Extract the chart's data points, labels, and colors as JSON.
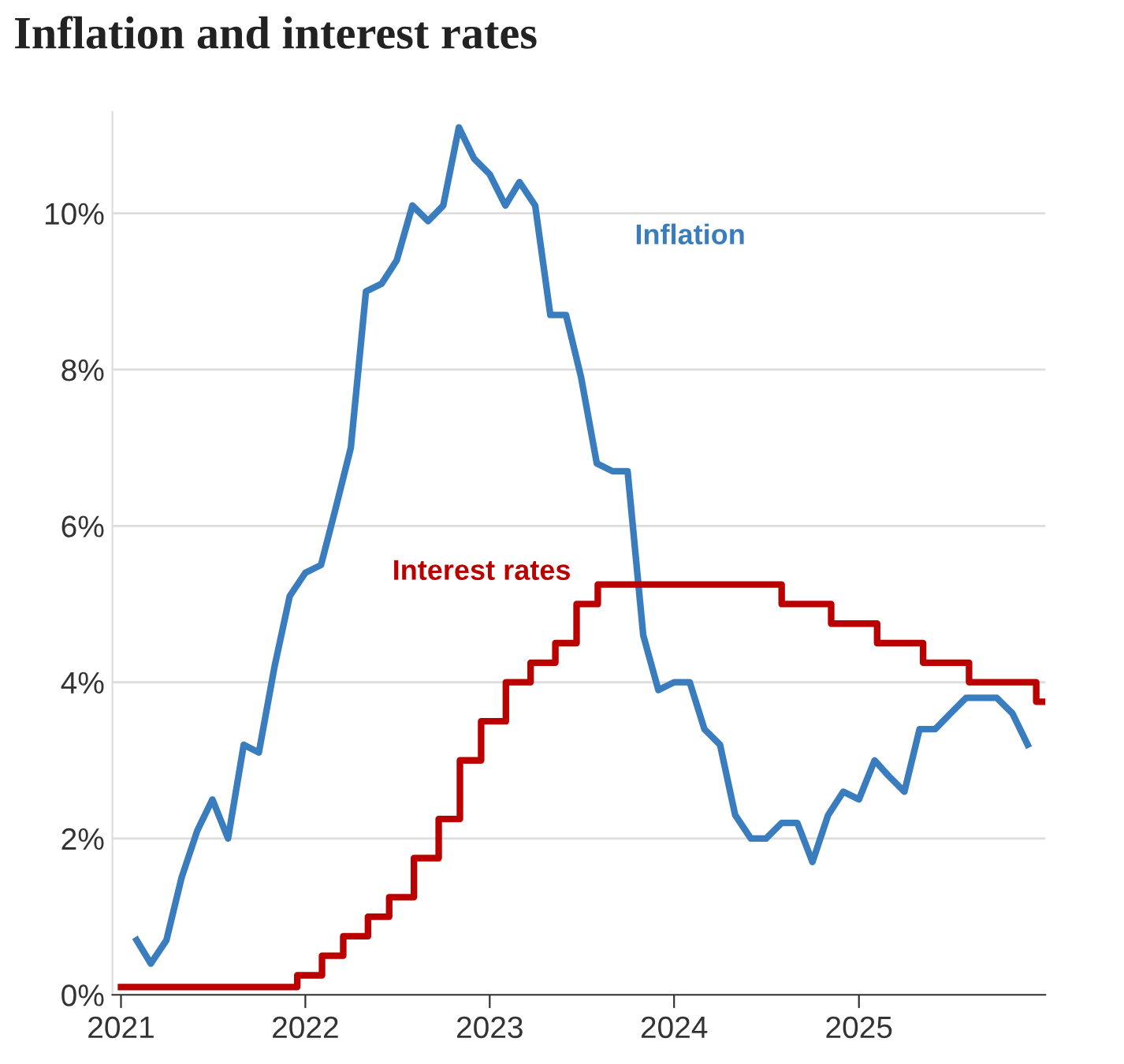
{
  "chart_data": {
    "type": "line",
    "title": "Inflation and interest rates",
    "xlim": [
      "2020-12-15",
      "2026-01-05"
    ],
    "xticks": [
      "2021",
      "2022",
      "2023",
      "2024",
      "2025"
    ],
    "ylim": [
      0,
      11.3
    ],
    "yticks": [
      {
        "value": 0,
        "label": "0%"
      },
      {
        "value": 2,
        "label": "2%"
      },
      {
        "value": 4,
        "label": "4%"
      },
      {
        "value": 6,
        "label": "6%"
      },
      {
        "value": 8,
        "label": "8%"
      },
      {
        "value": 10,
        "label": "10%"
      }
    ],
    "grid": "y",
    "legend": false,
    "series": [
      {
        "name": "Inflation",
        "color": "#3a7dbf",
        "x": [
          "2021-02-01",
          "2021-03-01",
          "2021-04-01",
          "2021-05-01",
          "2021-06-01",
          "2021-07-01",
          "2021-08-01",
          "2021-09-01",
          "2021-10-01",
          "2021-11-01",
          "2021-12-01",
          "2022-01-01",
          "2022-02-01",
          "2022-03-01",
          "2022-04-01",
          "2022-05-01",
          "2022-06-01",
          "2022-07-01",
          "2022-08-01",
          "2022-09-01",
          "2022-10-01",
          "2022-11-01",
          "2022-12-01",
          "2023-01-01",
          "2023-02-01",
          "2023-03-01",
          "2023-04-01",
          "2023-05-01",
          "2023-06-01",
          "2023-07-01",
          "2023-08-01",
          "2023-09-01",
          "2023-10-01",
          "2023-11-01",
          "2023-12-01",
          "2024-01-01",
          "2024-02-01",
          "2024-03-01",
          "2024-04-01",
          "2024-05-01",
          "2024-06-01",
          "2024-07-01",
          "2024-08-01",
          "2024-09-01",
          "2024-10-01",
          "2024-11-01",
          "2024-12-01",
          "2025-01-01",
          "2025-02-01",
          "2025-03-01",
          "2025-04-01",
          "2025-05-01",
          "2025-06-01",
          "2025-07-01",
          "2025-08-01",
          "2025-09-01",
          "2025-10-01",
          "2025-11-01",
          "2025-12-01"
        ],
        "values": [
          0.7,
          0.4,
          0.7,
          1.5,
          2.1,
          2.5,
          2.0,
          3.2,
          3.1,
          4.2,
          5.1,
          5.4,
          5.5,
          6.2,
          7.0,
          9.0,
          9.1,
          9.4,
          10.1,
          9.9,
          10.1,
          11.1,
          10.7,
          10.5,
          10.1,
          10.4,
          10.1,
          8.7,
          8.7,
          7.9,
          6.8,
          6.7,
          6.7,
          4.6,
          3.9,
          4.0,
          4.0,
          3.4,
          3.2,
          2.3,
          2.0,
          2.0,
          2.2,
          2.2,
          1.7,
          2.3,
          2.6,
          2.5,
          3.0,
          2.8,
          2.6,
          3.4,
          3.4,
          3.6,
          3.8,
          3.8,
          3.8,
          3.6,
          3.2
        ]
      },
      {
        "name": "Interest rates",
        "type": "step",
        "color": "#bb0000",
        "x": [
          "2021-01-01",
          "2021-12-16",
          "2022-02-03",
          "2022-03-17",
          "2022-05-05",
          "2022-06-16",
          "2022-08-04",
          "2022-09-22",
          "2022-11-03",
          "2022-12-15",
          "2023-02-02",
          "2023-03-23",
          "2023-05-11",
          "2023-06-22",
          "2023-08-03",
          "2024-08-01",
          "2024-11-07",
          "2025-02-06",
          "2025-05-08",
          "2025-08-07",
          "2025-12-18",
          "2025-12-31"
        ],
        "values": [
          0.1,
          0.25,
          0.5,
          0.75,
          1.0,
          1.25,
          1.75,
          2.25,
          3.0,
          3.5,
          4.0,
          4.25,
          4.5,
          5.0,
          5.25,
          5.0,
          4.75,
          4.5,
          4.25,
          4.0,
          3.75,
          3.75
        ]
      }
    ]
  }
}
